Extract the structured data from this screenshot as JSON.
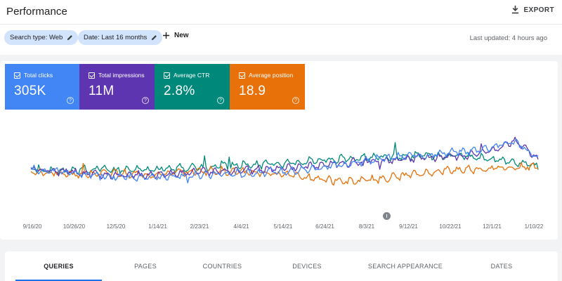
{
  "header": {
    "title": "Performance",
    "export_label": "EXPORT"
  },
  "filters": {
    "search_type": "Search type: Web",
    "date_range": "Date: Last 16 months",
    "new_label": "New",
    "last_updated": "Last updated: 4 hours ago"
  },
  "metrics": [
    {
      "label": "Total clicks",
      "value": "305K",
      "color": "#4285f4"
    },
    {
      "label": "Total impressions",
      "value": "11M",
      "color": "#5e35b1"
    },
    {
      "label": "Average CTR",
      "value": "2.8%",
      "color": "#00897b"
    },
    {
      "label": "Average position",
      "value": "18.9",
      "color": "#e8710a"
    }
  ],
  "chart_data": {
    "type": "line",
    "x_ticks": [
      "9/16/20",
      "10/26/20",
      "12/5/20",
      "1/14/21",
      "2/23/21",
      "4/4/21",
      "5/14/21",
      "6/24/21",
      "8/3/21",
      "9/12/21",
      "10/22/21",
      "12/1/21",
      "1/10/22"
    ],
    "grid": false,
    "legend": "none",
    "y_axis": "hidden",
    "series": [
      {
        "name": "Total clicks",
        "color": "#4285f4",
        "trend": [
          0.46,
          0.44,
          0.4,
          0.38,
          0.35,
          0.34,
          0.36,
          0.37,
          0.39,
          0.4,
          0.42,
          0.43,
          0.46,
          0.5,
          0.55,
          0.6,
          0.64,
          0.66,
          0.7,
          0.72,
          0.78,
          0.86,
          0.6
        ]
      },
      {
        "name": "Total impressions",
        "color": "#5e35b1",
        "trend": [
          0.46,
          0.44,
          0.41,
          0.39,
          0.37,
          0.38,
          0.4,
          0.42,
          0.43,
          0.44,
          0.46,
          0.48,
          0.5,
          0.53,
          0.56,
          0.58,
          0.6,
          0.62,
          0.64,
          0.66,
          0.72,
          0.88,
          0.62
        ]
      },
      {
        "name": "Average CTR",
        "color": "#00897b",
        "trend": [
          0.46,
          0.44,
          0.45,
          0.47,
          0.46,
          0.45,
          0.47,
          0.49,
          0.5,
          0.52,
          0.53,
          0.55,
          0.58,
          0.6,
          0.62,
          0.64,
          0.64,
          0.66,
          0.65,
          0.64,
          0.6,
          0.55,
          0.5
        ]
      },
      {
        "name": "Average position",
        "color": "#e8710a",
        "trend": [
          0.42,
          0.4,
          0.38,
          0.42,
          0.4,
          0.38,
          0.4,
          0.43,
          0.44,
          0.42,
          0.41,
          0.4,
          0.36,
          0.3,
          0.28,
          0.32,
          0.36,
          0.4,
          0.44,
          0.46,
          0.47,
          0.49,
          0.5
        ]
      }
    ]
  },
  "tabs": [
    {
      "label": "QUERIES",
      "active": true
    },
    {
      "label": "PAGES",
      "active": false
    },
    {
      "label": "COUNTRIES",
      "active": false
    },
    {
      "label": "DEVICES",
      "active": false
    },
    {
      "label": "SEARCH APPEARANCE",
      "active": false
    },
    {
      "label": "DATES",
      "active": false
    }
  ]
}
